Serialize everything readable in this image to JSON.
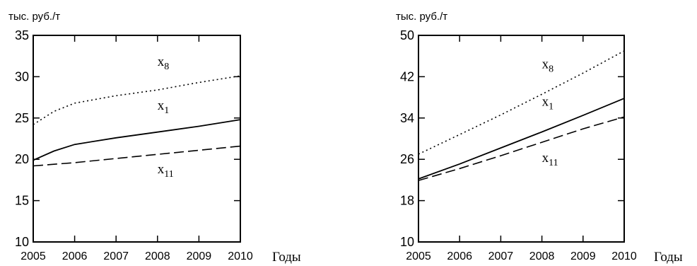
{
  "chart_data": [
    {
      "type": "line",
      "ylabel": "тыс. руб./т",
      "xlabel": "Годы",
      "xlim": [
        2005,
        2010
      ],
      "ylim": [
        10,
        35
      ],
      "x_ticks": [
        "2005",
        "2006",
        "2007",
        "2008",
        "2009",
        "2010"
      ],
      "y_ticks": [
        "10",
        "15",
        "20",
        "25",
        "30",
        "35"
      ],
      "grid": false,
      "series": [
        {
          "name": "x8",
          "label_main": "x",
          "label_sub": "8",
          "style": "dotted",
          "label_at": [
            2008.0,
            31.3
          ],
          "x": [
            2005,
            2005.5,
            2006,
            2007,
            2008,
            2009,
            2010
          ],
          "y": [
            24.2,
            25.8,
            26.8,
            27.7,
            28.4,
            29.3,
            30.1
          ]
        },
        {
          "name": "x1",
          "label_main": "x",
          "label_sub": "1",
          "style": "solid",
          "label_at": [
            2008.0,
            26.0
          ],
          "x": [
            2005,
            2005.5,
            2006,
            2007,
            2008,
            2009,
            2010
          ],
          "y": [
            19.9,
            21.0,
            21.8,
            22.6,
            23.3,
            24.0,
            24.8
          ]
        },
        {
          "name": "x11",
          "label_main": "x",
          "label_sub": "11",
          "style": "dashed",
          "label_at": [
            2008.0,
            18.3
          ],
          "x": [
            2005,
            2006,
            2007,
            2008,
            2009,
            2010
          ],
          "y": [
            19.2,
            19.6,
            20.1,
            20.6,
            21.1,
            21.6
          ]
        }
      ]
    },
    {
      "type": "line",
      "ylabel": "тыс. руб./т",
      "xlabel": "Годы",
      "xlim": [
        2005,
        2010
      ],
      "ylim": [
        10,
        50
      ],
      "x_ticks": [
        "2005",
        "2006",
        "2007",
        "2008",
        "2009",
        "2010"
      ],
      "y_ticks": [
        "10",
        "18",
        "26",
        "34",
        "42",
        "50"
      ],
      "grid": false,
      "series": [
        {
          "name": "x8",
          "label_main": "x",
          "label_sub": "8",
          "style": "dotted",
          "label_at": [
            2008.0,
            43.6
          ],
          "x": [
            2005,
            2006,
            2007,
            2008,
            2009,
            2010
          ],
          "y": [
            27.0,
            30.8,
            34.6,
            38.6,
            42.7,
            47.0
          ]
        },
        {
          "name": "x1",
          "label_main": "x",
          "label_sub": "1",
          "style": "solid",
          "label_at": [
            2008.0,
            36.4
          ],
          "x": [
            2005,
            2006,
            2007,
            2008,
            2009,
            2010
          ],
          "y": [
            22.2,
            25.1,
            28.2,
            31.3,
            34.5,
            37.8
          ]
        },
        {
          "name": "x11",
          "label_main": "x",
          "label_sub": "11",
          "style": "dashed",
          "label_at": [
            2008.0,
            25.5
          ],
          "x": [
            2005,
            2006,
            2007,
            2008,
            2009,
            2010
          ],
          "y": [
            21.9,
            24.2,
            26.7,
            29.3,
            31.9,
            34.2
          ]
        }
      ]
    }
  ]
}
